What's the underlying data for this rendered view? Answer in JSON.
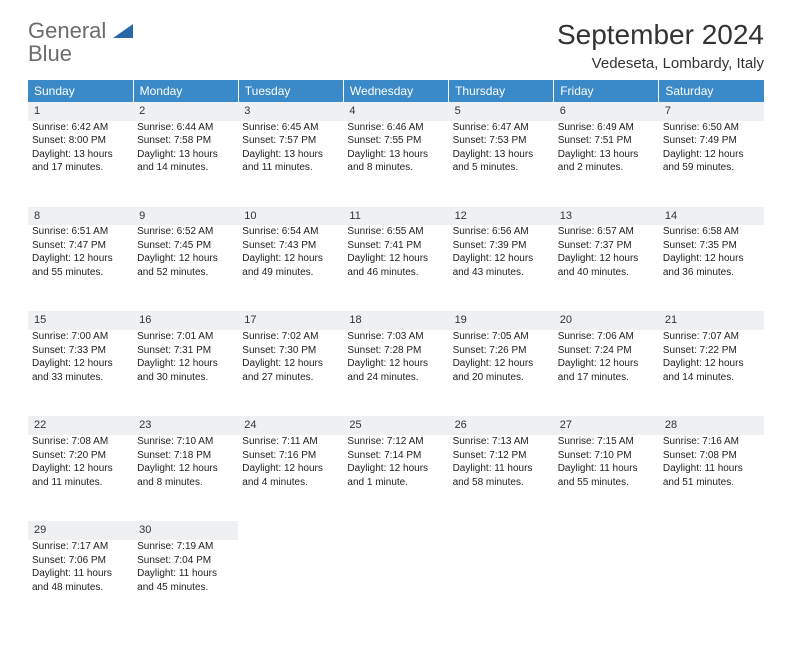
{
  "logo": {
    "word1": "General",
    "word2": "Blue"
  },
  "title": "September 2024",
  "location": "Vedeseta, Lombardy, Italy",
  "colors": {
    "header_bg": "#3a8ac9",
    "header_text": "#ffffff",
    "daynum_bg": "#eef0f1",
    "text": "#222222",
    "logo_gray": "#6b6b6b",
    "logo_blue": "#2968a8"
  },
  "weekdays": [
    "Sunday",
    "Monday",
    "Tuesday",
    "Wednesday",
    "Thursday",
    "Friday",
    "Saturday"
  ],
  "days": {
    "1": {
      "sunrise": "Sunrise: 6:42 AM",
      "sunset": "Sunset: 8:00 PM",
      "day1": "Daylight: 13 hours",
      "day2": "and 17 minutes."
    },
    "2": {
      "sunrise": "Sunrise: 6:44 AM",
      "sunset": "Sunset: 7:58 PM",
      "day1": "Daylight: 13 hours",
      "day2": "and 14 minutes."
    },
    "3": {
      "sunrise": "Sunrise: 6:45 AM",
      "sunset": "Sunset: 7:57 PM",
      "day1": "Daylight: 13 hours",
      "day2": "and 11 minutes."
    },
    "4": {
      "sunrise": "Sunrise: 6:46 AM",
      "sunset": "Sunset: 7:55 PM",
      "day1": "Daylight: 13 hours",
      "day2": "and 8 minutes."
    },
    "5": {
      "sunrise": "Sunrise: 6:47 AM",
      "sunset": "Sunset: 7:53 PM",
      "day1": "Daylight: 13 hours",
      "day2": "and 5 minutes."
    },
    "6": {
      "sunrise": "Sunrise: 6:49 AM",
      "sunset": "Sunset: 7:51 PM",
      "day1": "Daylight: 13 hours",
      "day2": "and 2 minutes."
    },
    "7": {
      "sunrise": "Sunrise: 6:50 AM",
      "sunset": "Sunset: 7:49 PM",
      "day1": "Daylight: 12 hours",
      "day2": "and 59 minutes."
    },
    "8": {
      "sunrise": "Sunrise: 6:51 AM",
      "sunset": "Sunset: 7:47 PM",
      "day1": "Daylight: 12 hours",
      "day2": "and 55 minutes."
    },
    "9": {
      "sunrise": "Sunrise: 6:52 AM",
      "sunset": "Sunset: 7:45 PM",
      "day1": "Daylight: 12 hours",
      "day2": "and 52 minutes."
    },
    "10": {
      "sunrise": "Sunrise: 6:54 AM",
      "sunset": "Sunset: 7:43 PM",
      "day1": "Daylight: 12 hours",
      "day2": "and 49 minutes."
    },
    "11": {
      "sunrise": "Sunrise: 6:55 AM",
      "sunset": "Sunset: 7:41 PM",
      "day1": "Daylight: 12 hours",
      "day2": "and 46 minutes."
    },
    "12": {
      "sunrise": "Sunrise: 6:56 AM",
      "sunset": "Sunset: 7:39 PM",
      "day1": "Daylight: 12 hours",
      "day2": "and 43 minutes."
    },
    "13": {
      "sunrise": "Sunrise: 6:57 AM",
      "sunset": "Sunset: 7:37 PM",
      "day1": "Daylight: 12 hours",
      "day2": "and 40 minutes."
    },
    "14": {
      "sunrise": "Sunrise: 6:58 AM",
      "sunset": "Sunset: 7:35 PM",
      "day1": "Daylight: 12 hours",
      "day2": "and 36 minutes."
    },
    "15": {
      "sunrise": "Sunrise: 7:00 AM",
      "sunset": "Sunset: 7:33 PM",
      "day1": "Daylight: 12 hours",
      "day2": "and 33 minutes."
    },
    "16": {
      "sunrise": "Sunrise: 7:01 AM",
      "sunset": "Sunset: 7:31 PM",
      "day1": "Daylight: 12 hours",
      "day2": "and 30 minutes."
    },
    "17": {
      "sunrise": "Sunrise: 7:02 AM",
      "sunset": "Sunset: 7:30 PM",
      "day1": "Daylight: 12 hours",
      "day2": "and 27 minutes."
    },
    "18": {
      "sunrise": "Sunrise: 7:03 AM",
      "sunset": "Sunset: 7:28 PM",
      "day1": "Daylight: 12 hours",
      "day2": "and 24 minutes."
    },
    "19": {
      "sunrise": "Sunrise: 7:05 AM",
      "sunset": "Sunset: 7:26 PM",
      "day1": "Daylight: 12 hours",
      "day2": "and 20 minutes."
    },
    "20": {
      "sunrise": "Sunrise: 7:06 AM",
      "sunset": "Sunset: 7:24 PM",
      "day1": "Daylight: 12 hours",
      "day2": "and 17 minutes."
    },
    "21": {
      "sunrise": "Sunrise: 7:07 AM",
      "sunset": "Sunset: 7:22 PM",
      "day1": "Daylight: 12 hours",
      "day2": "and 14 minutes."
    },
    "22": {
      "sunrise": "Sunrise: 7:08 AM",
      "sunset": "Sunset: 7:20 PM",
      "day1": "Daylight: 12 hours",
      "day2": "and 11 minutes."
    },
    "23": {
      "sunrise": "Sunrise: 7:10 AM",
      "sunset": "Sunset: 7:18 PM",
      "day1": "Daylight: 12 hours",
      "day2": "and 8 minutes."
    },
    "24": {
      "sunrise": "Sunrise: 7:11 AM",
      "sunset": "Sunset: 7:16 PM",
      "day1": "Daylight: 12 hours",
      "day2": "and 4 minutes."
    },
    "25": {
      "sunrise": "Sunrise: 7:12 AM",
      "sunset": "Sunset: 7:14 PM",
      "day1": "Daylight: 12 hours",
      "day2": "and 1 minute."
    },
    "26": {
      "sunrise": "Sunrise: 7:13 AM",
      "sunset": "Sunset: 7:12 PM",
      "day1": "Daylight: 11 hours",
      "day2": "and 58 minutes."
    },
    "27": {
      "sunrise": "Sunrise: 7:15 AM",
      "sunset": "Sunset: 7:10 PM",
      "day1": "Daylight: 11 hours",
      "day2": "and 55 minutes."
    },
    "28": {
      "sunrise": "Sunrise: 7:16 AM",
      "sunset": "Sunset: 7:08 PM",
      "day1": "Daylight: 11 hours",
      "day2": "and 51 minutes."
    },
    "29": {
      "sunrise": "Sunrise: 7:17 AM",
      "sunset": "Sunset: 7:06 PM",
      "day1": "Daylight: 11 hours",
      "day2": "and 48 minutes."
    },
    "30": {
      "sunrise": "Sunrise: 7:19 AM",
      "sunset": "Sunset: 7:04 PM",
      "day1": "Daylight: 11 hours",
      "day2": "and 45 minutes."
    }
  },
  "layout": {
    "weeks": [
      [
        1,
        2,
        3,
        4,
        5,
        6,
        7
      ],
      [
        8,
        9,
        10,
        11,
        12,
        13,
        14
      ],
      [
        15,
        16,
        17,
        18,
        19,
        20,
        21
      ],
      [
        22,
        23,
        24,
        25,
        26,
        27,
        28
      ],
      [
        29,
        30,
        null,
        null,
        null,
        null,
        null
      ]
    ]
  }
}
